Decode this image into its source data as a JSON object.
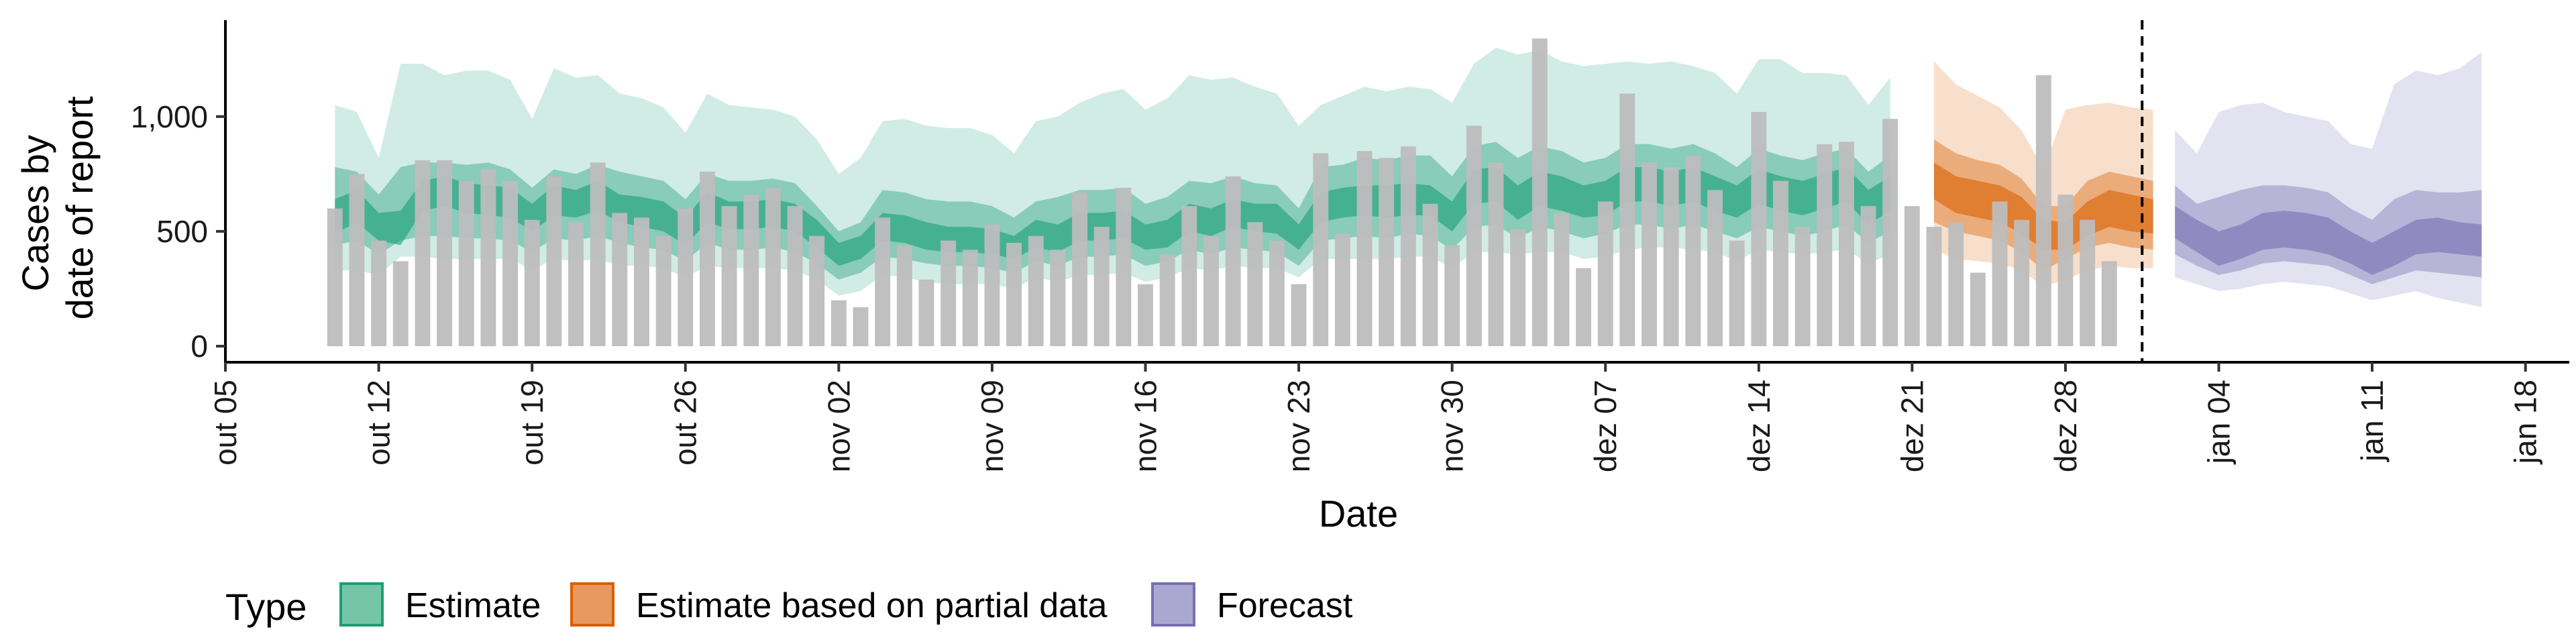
{
  "chart_data": {
    "type": "bar",
    "xlabel": "Date",
    "ylabel_lines": [
      "Cases by",
      "date of report"
    ],
    "ylim": [
      -70,
      1420
    ],
    "y_ticks": [
      {
        "value": 0,
        "label": "0"
      },
      {
        "value": 500,
        "label": "500"
      },
      {
        "value": 1000,
        "label": "1,000"
      }
    ],
    "x_start": "2020-10-05",
    "x_end": "2021-01-20",
    "x_ticks": [
      {
        "date": "2020-10-05",
        "label": "out 05"
      },
      {
        "date": "2020-10-12",
        "label": "out 12"
      },
      {
        "date": "2020-10-19",
        "label": "out 19"
      },
      {
        "date": "2020-10-26",
        "label": "out 26"
      },
      {
        "date": "2020-11-02",
        "label": "nov 02"
      },
      {
        "date": "2020-11-09",
        "label": "nov 09"
      },
      {
        "date": "2020-11-16",
        "label": "nov 16"
      },
      {
        "date": "2020-11-23",
        "label": "nov 23"
      },
      {
        "date": "2020-11-30",
        "label": "nov 30"
      },
      {
        "date": "2020-12-07",
        "label": "dez 07"
      },
      {
        "date": "2020-12-14",
        "label": "dez 14"
      },
      {
        "date": "2020-12-21",
        "label": "dez 21"
      },
      {
        "date": "2020-12-28",
        "label": "dez 28"
      },
      {
        "date": "2021-01-04",
        "label": "jan 04"
      },
      {
        "date": "2021-01-11",
        "label": "jan 11"
      },
      {
        "date": "2021-01-18",
        "label": "jan 18"
      }
    ],
    "forecast_date": "2021-01-01",
    "bar_color": "#bdbdbd",
    "bars": {
      "start_date": "2020-10-10",
      "values": [
        600,
        750,
        460,
        370,
        810,
        810,
        720,
        770,
        720,
        550,
        740,
        540,
        800,
        580,
        560,
        480,
        600,
        760,
        610,
        660,
        690,
        610,
        480,
        200,
        170,
        560,
        440,
        290,
        460,
        420,
        530,
        450,
        480,
        420,
        670,
        520,
        690,
        270,
        400,
        610,
        480,
        740,
        540,
        460,
        270,
        840,
        490,
        850,
        820,
        870,
        620,
        440,
        960,
        800,
        510,
        1340,
        580,
        340,
        630,
        1100,
        800,
        780,
        830,
        680,
        460,
        1020,
        720,
        520,
        880,
        890,
        610,
        990,
        610,
        520,
        540,
        320,
        630,
        550,
        1180,
        660,
        550,
        370
      ]
    },
    "legend_title": "Type",
    "series": [
      {
        "name": "Estimate",
        "color": "#1b9e77",
        "legend_fill": "#75c6a8",
        "start_date": "2020-10-10",
        "median": [
          560,
          620,
          520,
          500,
          660,
          680,
          640,
          640,
          620,
          560,
          630,
          620,
          660,
          600,
          580,
          560,
          500,
          600,
          570,
          570,
          580,
          560,
          490,
          400,
          430,
          520,
          510,
          480,
          470,
          470,
          460,
          430,
          490,
          470,
          520,
          520,
          530,
          470,
          490,
          560,
          540,
          580,
          560,
          550,
          470,
          600,
          620,
          630,
          620,
          640,
          630,
          560,
          690,
          700,
          620,
          680,
          660,
          620,
          640,
          700,
          700,
          680,
          700,
          660,
          630,
          690,
          660,
          640,
          670,
          700,
          600,
          660
        ],
        "bands": [
          {
            "opacity": 0.2,
            "upper": [
              1050,
              1020,
              820,
              1230,
              1230,
              1180,
              1200,
              1200,
              1160,
              990,
              1210,
              1170,
              1180,
              1100,
              1080,
              1040,
              930,
              1100,
              1050,
              1040,
              1030,
              1000,
              900,
              750,
              820,
              980,
              990,
              960,
              950,
              950,
              920,
              840,
              980,
              1000,
              1060,
              1100,
              1120,
              1030,
              1080,
              1180,
              1160,
              1170,
              1130,
              1100,
              960,
              1050,
              1090,
              1130,
              1110,
              1130,
              1120,
              1060,
              1230,
              1300,
              1270,
              1290,
              1240,
              1220,
              1230,
              1240,
              1230,
              1240,
              1220,
              1190,
              1100,
              1250,
              1250,
              1190,
              1190,
              1180,
              1050,
              1170
            ],
            "lower": [
              330,
              330,
              310,
              390,
              390,
              380,
              380,
              380,
              380,
              330,
              380,
              370,
              380,
              350,
              350,
              340,
              300,
              350,
              340,
              340,
              340,
              330,
              290,
              220,
              240,
              310,
              300,
              280,
              270,
              270,
              270,
              250,
              300,
              280,
              310,
              310,
              320,
              280,
              300,
              340,
              330,
              350,
              340,
              340,
              300,
              380,
              380,
              380,
              380,
              390,
              390,
              340,
              410,
              410,
              400,
              410,
              410,
              380,
              390,
              420,
              430,
              430,
              420,
              410,
              370,
              420,
              410,
              400,
              410,
              420,
              360,
              400
            ]
          },
          {
            "opacity": 0.4,
            "upper": [
              780,
              760,
              660,
              780,
              800,
              800,
              790,
              800,
              770,
              690,
              770,
              750,
              790,
              760,
              740,
              720,
              640,
              750,
              720,
              720,
              730,
              710,
              610,
              500,
              540,
              680,
              670,
              640,
              630,
              630,
              610,
              560,
              630,
              650,
              680,
              680,
              690,
              620,
              650,
              720,
              710,
              740,
              710,
              700,
              600,
              780,
              790,
              820,
              810,
              830,
              830,
              740,
              870,
              890,
              820,
              870,
              850,
              800,
              820,
              880,
              880,
              860,
              880,
              840,
              780,
              860,
              830,
              810,
              840,
              860,
              760,
              830
            ],
            "lower": [
              440,
              460,
              400,
              460,
              480,
              480,
              470,
              470,
              460,
              410,
              470,
              460,
              480,
              450,
              430,
              420,
              370,
              450,
              420,
              420,
              430,
              410,
              360,
              290,
              320,
              390,
              380,
              360,
              350,
              350,
              340,
              320,
              370,
              350,
              390,
              390,
              400,
              350,
              370,
              420,
              400,
              430,
              420,
              410,
              350,
              460,
              470,
              480,
              470,
              490,
              480,
              420,
              520,
              530,
              470,
              520,
              500,
              470,
              490,
              530,
              530,
              510,
              530,
              500,
              470,
              520,
              500,
              480,
              500,
              530,
              450,
              500
            ]
          },
          {
            "opacity": 0.6,
            "upper": [
              640,
              680,
              580,
              590,
              720,
              740,
              710,
              700,
              690,
              620,
              700,
              680,
              720,
              660,
              650,
              630,
              560,
              670,
              630,
              630,
              640,
              620,
              550,
              450,
              480,
              580,
              570,
              540,
              520,
              520,
              510,
              480,
              550,
              530,
              580,
              580,
              590,
              530,
              550,
              620,
              600,
              640,
              620,
              620,
              530,
              670,
              690,
              700,
              700,
              710,
              700,
              630,
              770,
              780,
              700,
              760,
              740,
              700,
              720,
              780,
              780,
              760,
              780,
              740,
              700,
              770,
              740,
              720,
              750,
              780,
              680,
              740
            ],
            "lower": [
              490,
              540,
              460,
              440,
              590,
              610,
              580,
              570,
              560,
              500,
              570,
              560,
              590,
              540,
              520,
              500,
              440,
              540,
              510,
              510,
              520,
              500,
              430,
              350,
              380,
              460,
              450,
              420,
              410,
              410,
              400,
              380,
              430,
              410,
              460,
              460,
              470,
              420,
              430,
              500,
              480,
              520,
              500,
              490,
              420,
              540,
              560,
              570,
              560,
              570,
              570,
              500,
              620,
              630,
              550,
              610,
              590,
              560,
              570,
              630,
              630,
              610,
              630,
              590,
              560,
              620,
              590,
              570,
              600,
              630,
              530,
              590
            ]
          }
        ]
      },
      {
        "name": "Estimate based on partial data",
        "color": "#d95f02",
        "legend_fill": "#e89a5e",
        "start_date": "2020-12-22",
        "median": [
          720,
          660,
          640,
          620,
          560,
          500,
          470,
          540,
          600,
          580,
          560
        ],
        "bands": [
          {
            "opacity": 0.2,
            "upper": [
              1240,
              1140,
              1090,
              1040,
              940,
              770,
              1030,
              1050,
              1060,
              1040,
              1030
            ],
            "lower": [
              420,
              380,
              370,
              360,
              330,
              260,
              290,
              330,
              350,
              340,
              340
            ]
          },
          {
            "opacity": 0.4,
            "upper": [
              900,
              840,
              810,
              790,
              730,
              610,
              610,
              720,
              760,
              740,
              720
            ],
            "lower": [
              540,
              500,
              480,
              460,
              410,
              330,
              380,
              430,
              450,
              430,
              420
            ]
          },
          {
            "opacity": 0.6,
            "upper": [
              800,
              740,
              720,
              700,
              650,
              550,
              540,
              630,
              680,
              660,
              640
            ],
            "lower": [
              640,
              580,
              560,
              540,
              490,
              420,
              420,
              480,
              520,
              500,
              490
            ]
          }
        ]
      },
      {
        "name": "Forecast",
        "color": "#7570b3",
        "legend_fill": "#aaa7d1",
        "start_date": "2021-01-02",
        "median": [
          540,
          480,
          420,
          450,
          500,
          510,
          500,
          480,
          430,
          380,
          420,
          470,
          480,
          470,
          460
        ],
        "bands": [
          {
            "opacity": 0.2,
            "upper": [
              940,
              840,
              1020,
              1050,
              1060,
              1020,
              1000,
              980,
              880,
              860,
              1140,
              1200,
              1180,
              1210,
              1280
            ],
            "lower": [
              300,
              270,
              240,
              250,
              270,
              280,
              270,
              260,
              230,
              200,
              220,
              240,
              210,
              190,
              170
            ]
          },
          {
            "opacity": 0.4,
            "upper": [
              700,
              620,
              650,
              680,
              700,
              700,
              690,
              670,
              600,
              550,
              640,
              680,
              670,
              670,
              680
            ],
            "lower": [
              400,
              350,
              310,
              330,
              360,
              370,
              360,
              350,
              310,
              270,
              300,
              330,
              320,
              310,
              300
            ]
          },
          {
            "opacity": 0.6,
            "upper": [
              610,
              550,
              500,
              530,
              580,
              590,
              580,
              560,
              500,
              450,
              500,
              550,
              560,
              540,
              530
            ],
            "lower": [
              470,
              410,
              350,
              380,
              420,
              430,
              420,
              400,
              360,
              310,
              350,
              400,
              410,
              400,
              390
            ]
          }
        ]
      }
    ]
  }
}
